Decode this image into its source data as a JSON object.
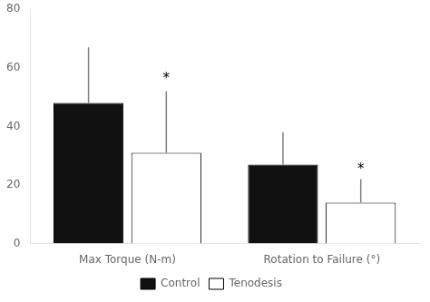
{
  "chart_data": {
    "type": "bar",
    "categories": [
      "Max Torque (N-m)",
      "Rotation to Failure (°)"
    ],
    "series": [
      {
        "name": "Control",
        "color": "#111111",
        "values": [
          48,
          27
        ],
        "errors_high": [
          19,
          11
        ]
      },
      {
        "name": "Tenodesis",
        "color": "#ffffff",
        "values": [
          31,
          14
        ],
        "errors_high": [
          21,
          8
        ]
      }
    ],
    "ylim": [
      0,
      80
    ],
    "yticks": [
      0,
      20,
      40,
      60,
      80
    ],
    "grid": false,
    "legend": "bottom",
    "annotations": [
      {
        "text": "*",
        "category": "Max Torque (N-m)",
        "series": "Tenodesis",
        "y": 54
      },
      {
        "text": "*",
        "category": "Rotation to Failure (°)",
        "series": "Tenodesis",
        "y": 23
      }
    ]
  }
}
